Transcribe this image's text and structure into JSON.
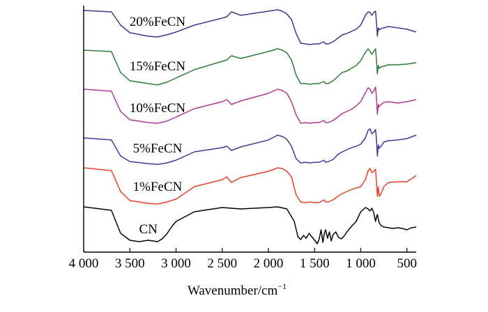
{
  "chart_data": {
    "type": "line",
    "title": "",
    "xlabel": "Wavenumber/cm",
    "xlabel_sup": "−1",
    "ylabel": "",
    "xlim": [
      4000,
      400
    ],
    "x_ticks": [
      4000,
      3500,
      3000,
      2500,
      2000,
      1500,
      1000,
      500
    ],
    "x_tick_labels": [
      "4 000",
      "3 500",
      "3 000",
      "2 500",
      "2 000",
      "1 500",
      "1 000",
      "500"
    ],
    "y_ticks_shown": false,
    "stacked_offset": true,
    "series": [
      {
        "name": "CN",
        "label": "CN",
        "color": "#000000",
        "label_x": 3300,
        "x": [
          4000,
          3700,
          3600,
          3500,
          3400,
          3300,
          3200,
          3150,
          3100,
          3050,
          3000,
          2800,
          2500,
          2300,
          2000,
          1900,
          1800,
          1720,
          1680,
          1650,
          1620,
          1590,
          1560,
          1530,
          1500,
          1470,
          1450,
          1430,
          1410,
          1395,
          1380,
          1360,
          1340,
          1320,
          1300,
          1270,
          1240,
          1210,
          1180,
          1150,
          1100,
          1050,
          1000,
          950,
          920,
          900,
          880,
          860,
          840,
          830,
          820,
          810,
          800,
          780,
          750,
          700,
          650,
          600,
          550,
          500,
          450,
          400
        ],
        "y": [
          297,
          302,
          335,
          345,
          347,
          345,
          347,
          343,
          336,
          326,
          318,
          304,
          298,
          300,
          298,
          297,
          300,
          318,
          340,
          344,
          338,
          342,
          335,
          340,
          345,
          350,
          343,
          330,
          348,
          335,
          330,
          342,
          333,
          346,
          337,
          333,
          341,
          343,
          339,
          333,
          325,
          318,
          304,
          298,
          300,
          303,
          299,
          305,
          318,
          312,
          308,
          315,
          320,
          324,
          326,
          327,
          328,
          327,
          328,
          330,
          327,
          326
        ]
      },
      {
        "name": "1%FeCN",
        "label": "1%FeCN",
        "color": "#e8402a",
        "label_x": 3200,
        "x": [
          4000,
          3700,
          3600,
          3500,
          3300,
          3200,
          3100,
          3000,
          2800,
          2500,
          2450,
          2400,
          2300,
          2000,
          1900,
          1850,
          1800,
          1750,
          1700,
          1650,
          1600,
          1550,
          1500,
          1450,
          1400,
          1380,
          1350,
          1300,
          1250,
          1200,
          1150,
          1100,
          1050,
          1000,
          950,
          920,
          900,
          880,
          860,
          840,
          830,
          820,
          810,
          800,
          780,
          750,
          700,
          600,
          500,
          400
        ],
        "y": [
          241,
          245,
          275,
          288,
          292,
          293,
          290,
          286,
          268,
          258,
          254,
          262,
          255,
          246,
          241,
          242,
          246,
          254,
          280,
          290,
          291,
          290,
          291,
          291,
          287,
          290,
          290,
          287,
          282,
          278,
          275,
          272,
          270,
          268,
          258,
          245,
          242,
          248,
          246,
          243,
          260,
          282,
          268,
          282,
          278,
          268,
          262,
          261,
          261,
          252
        ]
      },
      {
        "name": "5%FeCN",
        "label": "5%FeCN",
        "color": "#3a3a96",
        "label_x": 3200,
        "x": [
          4000,
          3700,
          3600,
          3500,
          3300,
          3200,
          3100,
          3000,
          2800,
          2500,
          2450,
          2400,
          2300,
          2000,
          1900,
          1850,
          1800,
          1750,
          1700,
          1650,
          1600,
          1550,
          1500,
          1450,
          1400,
          1380,
          1350,
          1300,
          1250,
          1200,
          1150,
          1100,
          1050,
          1000,
          950,
          920,
          900,
          880,
          860,
          840,
          830,
          820,
          810,
          800,
          780,
          750,
          700,
          600,
          500,
          400
        ],
        "y": [
          198,
          201,
          224,
          232,
          235,
          236,
          234,
          230,
          218,
          212,
          210,
          216,
          211,
          201,
          194,
          196,
          200,
          210,
          228,
          234,
          233,
          234,
          233,
          233,
          230,
          233,
          232,
          229,
          222,
          218,
          215,
          212,
          210,
          207,
          198,
          187,
          185,
          192,
          190,
          186,
          200,
          224,
          208,
          213,
          210,
          204,
          202,
          201,
          199,
          194
        ]
      },
      {
        "name": "10%FeCN",
        "label": "10%FeCN",
        "color": "#b2388f",
        "label_x": 3200,
        "x": [
          4000,
          3700,
          3600,
          3500,
          3300,
          3200,
          3100,
          3000,
          2800,
          2500,
          2450,
          2400,
          2300,
          2000,
          1900,
          1850,
          1800,
          1750,
          1700,
          1650,
          1600,
          1550,
          1500,
          1450,
          1400,
          1380,
          1350,
          1300,
          1250,
          1200,
          1150,
          1100,
          1050,
          1000,
          950,
          920,
          900,
          880,
          860,
          840,
          830,
          820,
          810,
          800,
          780,
          750,
          700,
          600,
          500,
          400
        ],
        "y": [
          128,
          131,
          160,
          172,
          176,
          177,
          174,
          168,
          156,
          146,
          143,
          150,
          145,
          134,
          128,
          130,
          134,
          146,
          165,
          177,
          176,
          177,
          176,
          176,
          173,
          176,
          176,
          173,
          168,
          163,
          160,
          157,
          152,
          146,
          133,
          126,
          128,
          134,
          131,
          125,
          140,
          164,
          150,
          153,
          150,
          147,
          146,
          148,
          146,
          143
        ]
      },
      {
        "name": "15%FeCN",
        "label": "15%FeCN",
        "color": "#2e7a36",
        "label_x": 3200,
        "x": [
          4000,
          3700,
          3600,
          3500,
          3300,
          3200,
          3100,
          3000,
          2800,
          2500,
          2450,
          2400,
          2300,
          2000,
          1900,
          1850,
          1800,
          1750,
          1700,
          1650,
          1600,
          1550,
          1500,
          1450,
          1400,
          1380,
          1350,
          1300,
          1250,
          1200,
          1150,
          1100,
          1050,
          1000,
          950,
          920,
          900,
          880,
          860,
          840,
          830,
          820,
          810,
          800,
          780,
          750,
          700,
          600,
          500,
          400
        ],
        "y": [
          72,
          74,
          104,
          116,
          120,
          122,
          118,
          112,
          100,
          88,
          86,
          80,
          84,
          74,
          70,
          72,
          76,
          86,
          108,
          120,
          120,
          121,
          120,
          120,
          117,
          120,
          120,
          116,
          110,
          104,
          102,
          98,
          94,
          87,
          75,
          70,
          74,
          78,
          74,
          70,
          86,
          106,
          94,
          98,
          96,
          95,
          93,
          93,
          92,
          90
        ]
      },
      {
        "name": "20%FeCN",
        "label": "20%FeCN",
        "color": "#3a3a8c",
        "label_x": 3200,
        "x": [
          4000,
          3700,
          3600,
          3500,
          3300,
          3200,
          3100,
          3000,
          2800,
          2500,
          2450,
          2400,
          2300,
          2000,
          1900,
          1850,
          1800,
          1750,
          1700,
          1650,
          1600,
          1550,
          1500,
          1450,
          1400,
          1380,
          1350,
          1300,
          1250,
          1200,
          1150,
          1100,
          1050,
          1000,
          950,
          920,
          900,
          880,
          860,
          840,
          830,
          820,
          810,
          800,
          780,
          750,
          700,
          600,
          500,
          400
        ],
        "y": [
          15,
          17,
          36,
          47,
          52,
          53,
          50,
          46,
          36,
          26,
          24,
          17,
          22,
          16,
          14,
          16,
          20,
          28,
          48,
          62,
          63,
          64,
          63,
          63,
          60,
          63,
          63,
          60,
          55,
          50,
          48,
          45,
          42,
          36,
          22,
          17,
          18,
          22,
          18,
          16,
          32,
          52,
          40,
          43,
          41,
          40,
          38,
          40,
          42,
          46
        ]
      }
    ]
  }
}
